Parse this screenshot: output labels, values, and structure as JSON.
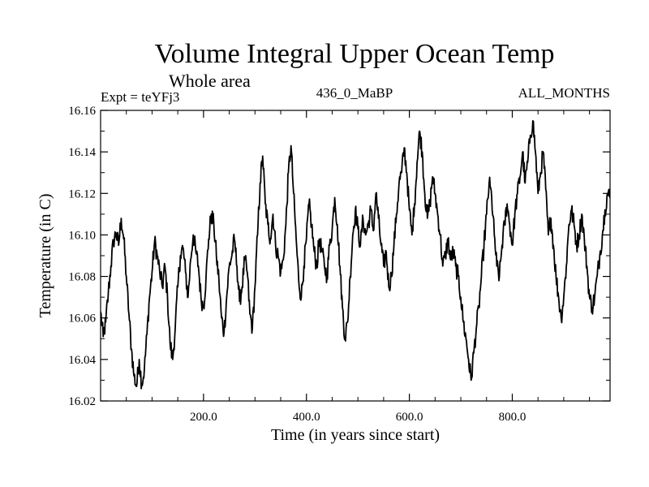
{
  "chart_data": {
    "type": "line",
    "title": "Volume Integral Upper Ocean Temp",
    "subtitle": "Whole area",
    "experiment_label": "Expt = teYFj3",
    "period_label": "436_0_MaBP",
    "months_label": "ALL_MONTHS",
    "xlabel": "Time (in years since start)",
    "ylabel": "Temperature (in C)",
    "xlim": [
      0,
      990
    ],
    "ylim": [
      16.02,
      16.16
    ],
    "x_ticks": [
      200,
      400,
      600,
      800
    ],
    "x_tick_labels": [
      "200.0",
      "400.0",
      "600.0",
      "800.0"
    ],
    "y_ticks": [
      16.02,
      16.04,
      16.06,
      16.08,
      16.1,
      16.12,
      16.14,
      16.16
    ],
    "y_tick_labels": [
      "16.02",
      "16.04",
      "16.06",
      "16.08",
      "16.10",
      "16.12",
      "16.14",
      "16.16"
    ],
    "grid": false,
    "series": [
      {
        "name": "Volume Integral Upper Ocean Temp",
        "color": "#000000",
        "points": [
          [
            0,
            16.063
          ],
          [
            5,
            16.051
          ],
          [
            10,
            16.058
          ],
          [
            15,
            16.072
          ],
          [
            20,
            16.085
          ],
          [
            25,
            16.097
          ],
          [
            30,
            16.101
          ],
          [
            35,
            16.095
          ],
          [
            40,
            16.108
          ],
          [
            45,
            16.098
          ],
          [
            50,
            16.08
          ],
          [
            55,
            16.062
          ],
          [
            60,
            16.045
          ],
          [
            65,
            16.032
          ],
          [
            70,
            16.027
          ],
          [
            75,
            16.04
          ],
          [
            80,
            16.028
          ],
          [
            85,
            16.035
          ],
          [
            90,
            16.052
          ],
          [
            95,
            16.07
          ],
          [
            100,
            16.082
          ],
          [
            105,
            16.097
          ],
          [
            110,
            16.09
          ],
          [
            115,
            16.082
          ],
          [
            120,
            16.075
          ],
          [
            125,
            16.085
          ],
          [
            130,
            16.07
          ],
          [
            135,
            16.048
          ],
          [
            140,
            16.04
          ],
          [
            145,
            16.055
          ],
          [
            150,
            16.075
          ],
          [
            155,
            16.09
          ],
          [
            160,
            16.094
          ],
          [
            165,
            16.082
          ],
          [
            170,
            16.07
          ],
          [
            175,
            16.088
          ],
          [
            180,
            16.1
          ],
          [
            185,
            16.092
          ],
          [
            190,
            16.085
          ],
          [
            195,
            16.07
          ],
          [
            200,
            16.065
          ],
          [
            205,
            16.08
          ],
          [
            210,
            16.098
          ],
          [
            215,
            16.11
          ],
          [
            220,
            16.105
          ],
          [
            225,
            16.09
          ],
          [
            230,
            16.078
          ],
          [
            235,
            16.06
          ],
          [
            240,
            16.053
          ],
          [
            245,
            16.07
          ],
          [
            250,
            16.085
          ],
          [
            255,
            16.09
          ],
          [
            260,
            16.098
          ],
          [
            265,
            16.085
          ],
          [
            270,
            16.068
          ],
          [
            275,
            16.075
          ],
          [
            280,
            16.088
          ],
          [
            285,
            16.082
          ],
          [
            290,
            16.062
          ],
          [
            295,
            16.055
          ],
          [
            300,
            16.075
          ],
          [
            305,
            16.1
          ],
          [
            310,
            16.125
          ],
          [
            315,
            16.138
          ],
          [
            320,
            16.115
          ],
          [
            325,
            16.105
          ],
          [
            330,
            16.098
          ],
          [
            335,
            16.11
          ],
          [
            340,
            16.095
          ],
          [
            345,
            16.09
          ],
          [
            350,
            16.082
          ],
          [
            355,
            16.088
          ],
          [
            360,
            16.105
          ],
          [
            365,
            16.13
          ],
          [
            370,
            16.143
          ],
          [
            375,
            16.12
          ],
          [
            380,
            16.098
          ],
          [
            385,
            16.078
          ],
          [
            390,
            16.07
          ],
          [
            395,
            16.085
          ],
          [
            400,
            16.098
          ],
          [
            405,
            16.115
          ],
          [
            410,
            16.105
          ],
          [
            415,
            16.092
          ],
          [
            420,
            16.085
          ],
          [
            425,
            16.098
          ],
          [
            430,
            16.092
          ],
          [
            435,
            16.085
          ],
          [
            440,
            16.08
          ],
          [
            445,
            16.095
          ],
          [
            450,
            16.103
          ],
          [
            455,
            16.118
          ],
          [
            460,
            16.105
          ],
          [
            465,
            16.085
          ],
          [
            470,
            16.065
          ],
          [
            475,
            16.05
          ],
          [
            480,
            16.058
          ],
          [
            485,
            16.08
          ],
          [
            490,
            16.1
          ],
          [
            495,
            16.112
          ],
          [
            500,
            16.103
          ],
          [
            505,
            16.095
          ],
          [
            510,
            16.108
          ],
          [
            515,
            16.1
          ],
          [
            520,
            16.105
          ],
          [
            525,
            16.112
          ],
          [
            530,
            16.102
          ],
          [
            535,
            16.12
          ],
          [
            540,
            16.108
          ],
          [
            545,
            16.095
          ],
          [
            550,
            16.085
          ],
          [
            555,
            16.092
          ],
          [
            560,
            16.075
          ],
          [
            565,
            16.08
          ],
          [
            570,
            16.095
          ],
          [
            575,
            16.11
          ],
          [
            580,
            16.125
          ],
          [
            585,
            16.13
          ],
          [
            590,
            16.142
          ],
          [
            595,
            16.13
          ],
          [
            600,
            16.112
          ],
          [
            605,
            16.1
          ],
          [
            610,
            16.115
          ],
          [
            615,
            16.135
          ],
          [
            620,
            16.15
          ],
          [
            625,
            16.14
          ],
          [
            630,
            16.12
          ],
          [
            635,
            16.108
          ],
          [
            640,
            16.115
          ],
          [
            645,
            16.128
          ],
          [
            650,
            16.12
          ],
          [
            655,
            16.11
          ],
          [
            660,
            16.1
          ],
          [
            665,
            16.085
          ],
          [
            670,
            16.09
          ],
          [
            675,
            16.098
          ],
          [
            680,
            16.088
          ],
          [
            685,
            16.092
          ],
          [
            690,
            16.085
          ],
          [
            695,
            16.08
          ],
          [
            700,
            16.07
          ],
          [
            705,
            16.058
          ],
          [
            710,
            16.05
          ],
          [
            715,
            16.04
          ],
          [
            720,
            16.03
          ],
          [
            725,
            16.043
          ],
          [
            730,
            16.055
          ],
          [
            735,
            16.065
          ],
          [
            740,
            16.08
          ],
          [
            745,
            16.095
          ],
          [
            750,
            16.11
          ],
          [
            755,
            16.125
          ],
          [
            760,
            16.118
          ],
          [
            765,
            16.1
          ],
          [
            770,
            16.085
          ],
          [
            775,
            16.08
          ],
          [
            780,
            16.095
          ],
          [
            785,
            16.105
          ],
          [
            790,
            16.115
          ],
          [
            795,
            16.105
          ],
          [
            800,
            16.095
          ],
          [
            805,
            16.11
          ],
          [
            810,
            16.12
          ],
          [
            815,
            16.128
          ],
          [
            820,
            16.14
          ],
          [
            825,
            16.125
          ],
          [
            830,
            16.135
          ],
          [
            835,
            16.148
          ],
          [
            840,
            16.155
          ],
          [
            845,
            16.14
          ],
          [
            850,
            16.12
          ],
          [
            855,
            16.13
          ],
          [
            860,
            16.14
          ],
          [
            865,
            16.122
          ],
          [
            870,
            16.1
          ],
          [
            875,
            16.108
          ],
          [
            880,
            16.095
          ],
          [
            885,
            16.08
          ],
          [
            890,
            16.07
          ],
          [
            895,
            16.06
          ],
          [
            900,
            16.07
          ],
          [
            905,
            16.085
          ],
          [
            910,
            16.105
          ],
          [
            915,
            16.112
          ],
          [
            920,
            16.105
          ],
          [
            925,
            16.095
          ],
          [
            930,
            16.1
          ],
          [
            935,
            16.11
          ],
          [
            940,
            16.098
          ],
          [
            945,
            16.085
          ],
          [
            950,
            16.07
          ],
          [
            955,
            16.065
          ],
          [
            960,
            16.07
          ],
          [
            965,
            16.08
          ],
          [
            970,
            16.09
          ],
          [
            975,
            16.1
          ],
          [
            980,
            16.112
          ],
          [
            985,
            16.12
          ],
          [
            990,
            16.118
          ]
        ]
      }
    ]
  }
}
